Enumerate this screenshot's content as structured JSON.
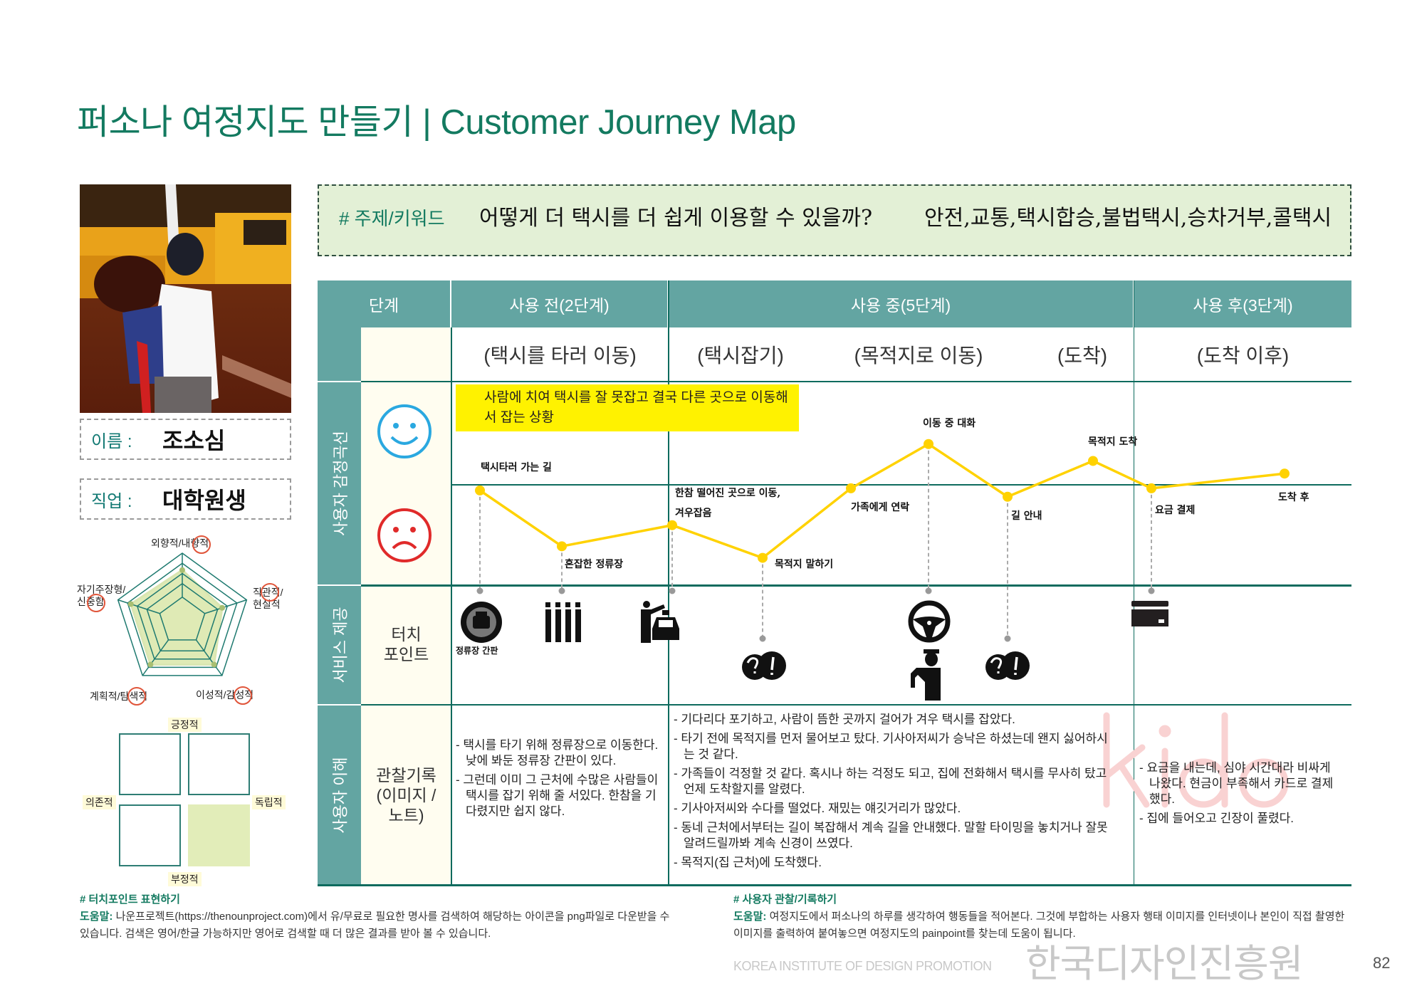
{
  "title": "퍼소나 여정지도 만들기 | Customer Journey Map",
  "persona": {
    "photo_alt": "woman hailing a yellow taxi",
    "name_label": "이름 :",
    "name_value": "조소심",
    "job_label": "직업 :",
    "job_value": "대학원생",
    "traits": [
      {
        "label": "외향적/내향적",
        "selected": "내향적",
        "value": 0.75
      },
      {
        "label": "직관적/현실적",
        "selected": "직관적",
        "value": 0.62
      },
      {
        "label": "이성적/감성적",
        "selected": "감성적",
        "value": 0.8
      },
      {
        "label": "계획적/탐색적",
        "selected": "탐색적",
        "value": 0.8
      },
      {
        "label": "자기주장형/신중함",
        "selected": "신중함",
        "value": 0.8
      }
    ],
    "quadrant": {
      "top": "긍정적",
      "bottom": "부정적",
      "left": "의존적",
      "right": "독립적",
      "selected": "bottom-right"
    }
  },
  "keyword": {
    "label": "# 주제/키워드",
    "question": "어떻게 더 택시를 더 쉽게 이용할 수 있을까?",
    "words": "안전,교통,택시합승,불법택시,승차거부,콜택시"
  },
  "table": {
    "headers": [
      "단계",
      "사용 전(2단계)",
      "사용 중(5단계)",
      "사용 후(3단계)"
    ],
    "stages": [
      "(택시를 타러 이동)",
      "(택시잡기)",
      "(목적지로 이동)",
      "(도착)",
      "(도착 이후)"
    ],
    "rows": [
      "사용자 감정곡선",
      "서비스 제공",
      "사용자 이해"
    ],
    "touchpoint_label": "터치\n포인트",
    "observation_label": "관찰기록\n(이미지 /\n노트)"
  },
  "emotion": {
    "callout": "사람에 치여 택시를 잘 못잡고 결국 다른 곳으로 이동해서 잡는 상황",
    "positive_icon": "smiley-face-icon",
    "negative_icon": "sad-face-icon",
    "line_color": "#ffd200",
    "points": [
      {
        "label": "택시타러 가는 길",
        "value": -0.06
      },
      {
        "label": "혼잡한 정류장",
        "value": -0.59
      },
      {
        "label": "한참 떨어진 곳으로 이동,",
        "label2": "겨우잡음",
        "value": -0.39
      },
      {
        "label": "목적지 말하기",
        "value": -0.7
      },
      {
        "label": "가족에게 연락",
        "value": -0.04
      },
      {
        "label": "이동 중 대화",
        "value": 0.38
      },
      {
        "label": "길 안내",
        "value": -0.12
      },
      {
        "label": "목적지 도착",
        "value": 0.22
      },
      {
        "label": "요금 결제",
        "value": -0.04
      },
      {
        "label": "도착 후",
        "value": 0.1
      }
    ]
  },
  "touchpoints": {
    "icons": [
      "taxi-stop-sign-icon",
      "queue-people-icon",
      "hail-taxi-icon",
      "question-exclaim-bubble-icon",
      "steering-wheel-icon",
      "taxi-driver-icon",
      "question-exclaim-bubble-icon",
      "credit-card-icon"
    ],
    "sign_caption": "정류장 간판"
  },
  "observations": {
    "before": [
      "- 택시를 타기 위해 정류장으로 이동한다. 낮에 봐둔 정류장 간판이 있다.",
      "- 그런데 이미 그 근처에 수많은 사람들이 택시를 잡기 위해 줄 서있다. 한참을 기다렸지만 쉽지 않다."
    ],
    "during": [
      "- 기다리다 포기하고, 사람이 뜸한 곳까지 걸어가 겨우 택시를 잡았다.",
      "- 타기 전에 목적지를 먼저 물어보고 탔다. 기사아저씨가 승낙은 하셨는데 왠지 싫어하시는 것 같다.",
      "- 가족들이 걱정할 것 같다. 혹시나 하는 걱정도 되고, 집에 전화해서 택시를 무사히 탔고 언제 도착할지를 알렸다.",
      "- 기사아저씨와 수다를 떨었다. 재밌는 얘깃거리가 많았다.",
      "- 동네 근처에서부터는 길이 복잡해서 계속 길을 안내했다. 말할 타이밍을 놓치거나 잘못 알려드릴까봐 계속 신경이 쓰였다.",
      "- 목적지(집 근처)에 도착했다."
    ],
    "after": [
      "- 요금을 내는데, 심야 시간대라 비싸게 나왔다. 현금이 부족해서 카드로 결제했다.",
      "- 집에 들어오고 긴장이 풀렸다."
    ]
  },
  "notes": [
    {
      "title": "# 터치포인트 표현하기",
      "help_label": "도움말:",
      "text": "나운프로젝트(https://thenounproject.com)에서 유/무료로 필요한 명사를 검색하여 해당하는 아이콘을 png파일로 다운받을 수 있습니다. 검색은 영어/한글 가능하지만 영어로 검색할 때 더 많은 결과를 받아 볼 수 있습니다."
    },
    {
      "title": "# 사용자 관찰/기록하기",
      "help_label": "도움말:",
      "text": "여정지도에서 퍼소나의 하루를 생각하여 행동들을 적어본다. 그것에 부합하는 사용자 행태 이미지를 인터넷이나 본인이 직접 촬영한 이미지를 출력하여 붙여놓으면 여정지도의 painpoint를 찾는데 도움이 됩니다."
    }
  ],
  "watermark": {
    "logo": "kido",
    "org_kr": "한국디자인진흥원",
    "org_en": "KOREA INSTITUTE OF DESIGN PROMOTION"
  },
  "page_number": "82",
  "colors": {
    "brand_green": "#137a60",
    "teal": "#63a5a2",
    "line": "#0e6b5e",
    "keyword_bg": "#e3f0d6",
    "callout": "#fff200"
  }
}
